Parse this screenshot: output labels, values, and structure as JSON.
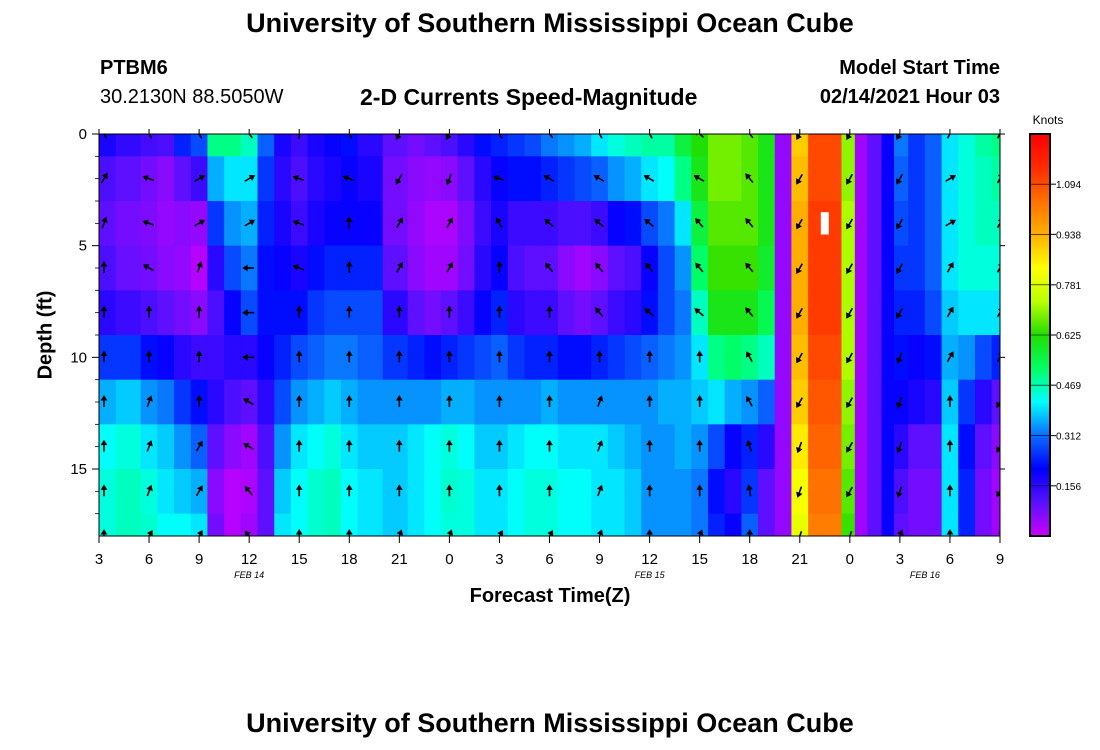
{
  "header": {
    "title": "University of Southern Mississippi Ocean Cube",
    "station_id": "PTBM6",
    "station_coords": "30.2130N 88.5050W",
    "plot_title": "2-D Currents Speed-Magnitude",
    "start_label": "Model Start Time",
    "start_value": "02/14/2021 Hour 03"
  },
  "footer": {
    "title": "University of Southern Mississippi Ocean Cube"
  },
  "chart_data": {
    "type": "heatmap",
    "title": "2-D Currents Speed-Magnitude",
    "xlabel": "Forecast Time(Z)",
    "ylabel": "Depth (ft)",
    "x_hours": [
      0,
      54
    ],
    "ylim": [
      0,
      18
    ],
    "y_inverted": true,
    "x_ticks": [
      {
        "hour": 0,
        "label": "3"
      },
      {
        "hour": 3,
        "label": "6"
      },
      {
        "hour": 6,
        "label": "9"
      },
      {
        "hour": 9,
        "label": "12"
      },
      {
        "hour": 12,
        "label": "15"
      },
      {
        "hour": 15,
        "label": "18"
      },
      {
        "hour": 18,
        "label": "21"
      },
      {
        "hour": 21,
        "label": "0"
      },
      {
        "hour": 24,
        "label": "3"
      },
      {
        "hour": 27,
        "label": "6"
      },
      {
        "hour": 30,
        "label": "9"
      },
      {
        "hour": 33,
        "label": "12"
      },
      {
        "hour": 36,
        "label": "15"
      },
      {
        "hour": 39,
        "label": "18"
      },
      {
        "hour": 42,
        "label": "21"
      },
      {
        "hour": 45,
        "label": "0"
      },
      {
        "hour": 48,
        "label": "3"
      },
      {
        "hour": 51,
        "label": "6"
      },
      {
        "hour": 54,
        "label": "9"
      }
    ],
    "date_labels": [
      {
        "hour": 9,
        "label": "FEB 14"
      },
      {
        "hour": 33,
        "label": "FEB 15"
      },
      {
        "hour": 49.5,
        "label": "FEB 16"
      }
    ],
    "y_ticks": [
      0,
      5,
      10,
      15
    ],
    "colorbar": {
      "units": "Knots",
      "range": [
        0,
        1.25
      ],
      "labels": [
        "0.156",
        "0.312",
        "0.469",
        "0.625",
        "0.781",
        "0.938",
        "1.094"
      ],
      "label_values": [
        0.156,
        0.312,
        0.469,
        0.625,
        0.781,
        0.938,
        1.094
      ],
      "stops": [
        "#cc00ff",
        "#5a10ff",
        "#0000ff",
        "#0a6cff",
        "#00ffff",
        "#00ff66",
        "#22dd00",
        "#bbff00",
        "#ffff00",
        "#ffb000",
        "#ff7000",
        "#ff2a00",
        "#ff0000"
      ]
    },
    "depths_ft": [
      0,
      2,
      4,
      6,
      8,
      10,
      12,
      14,
      16,
      18
    ],
    "columns": [
      {
        "h": 0,
        "v": [
          0.18,
          0.12,
          0.1,
          0.12,
          0.16,
          0.26,
          0.36,
          0.42,
          0.44,
          0.44
        ]
      },
      {
        "h": 2,
        "v": [
          0.15,
          0.1,
          0.08,
          0.09,
          0.14,
          0.26,
          0.38,
          0.44,
          0.46,
          0.46
        ]
      },
      {
        "h": 3,
        "v": [
          0.13,
          0.08,
          0.07,
          0.08,
          0.12,
          0.22,
          0.34,
          0.4,
          0.44,
          0.45
        ]
      },
      {
        "h": 4,
        "v": [
          0.12,
          0.06,
          0.05,
          0.06,
          0.1,
          0.2,
          0.32,
          0.38,
          0.4,
          0.42
        ]
      },
      {
        "h": 5,
        "v": [
          0.24,
          0.1,
          0.06,
          0.05,
          0.08,
          0.16,
          0.26,
          0.34,
          0.38,
          0.42
        ]
      },
      {
        "h": 6,
        "v": [
          0.28,
          0.14,
          0.05,
          0.02,
          0.06,
          0.14,
          0.22,
          0.3,
          0.36,
          0.4
        ]
      },
      {
        "h": 7,
        "v": [
          0.5,
          0.36,
          0.26,
          0.16,
          0.12,
          0.14,
          0.16,
          0.1,
          0.06,
          0.08
        ]
      },
      {
        "h": 8,
        "v": [
          0.5,
          0.4,
          0.34,
          0.28,
          0.2,
          0.16,
          0.12,
          0.06,
          0.02,
          0.02
        ]
      },
      {
        "h": 9,
        "v": [
          0.46,
          0.4,
          0.36,
          0.32,
          0.28,
          0.16,
          0.1,
          0.04,
          0.03,
          0.04
        ]
      },
      {
        "h": 10,
        "v": [
          0.3,
          0.26,
          0.24,
          0.22,
          0.22,
          0.2,
          0.16,
          0.12,
          0.1,
          0.1
        ]
      },
      {
        "h": 11,
        "v": [
          0.18,
          0.16,
          0.18,
          0.2,
          0.22,
          0.24,
          0.28,
          0.34,
          0.38,
          0.4
        ]
      },
      {
        "h": 12,
        "v": [
          0.14,
          0.12,
          0.14,
          0.18,
          0.22,
          0.28,
          0.34,
          0.4,
          0.42,
          0.42
        ]
      },
      {
        "h": 13,
        "v": [
          0.18,
          0.16,
          0.18,
          0.22,
          0.26,
          0.3,
          0.36,
          0.42,
          0.45,
          0.45
        ]
      },
      {
        "h": 14,
        "v": [
          0.2,
          0.18,
          0.2,
          0.24,
          0.28,
          0.32,
          0.38,
          0.44,
          0.46,
          0.46
        ]
      },
      {
        "h": 15,
        "v": [
          0.22,
          0.2,
          0.2,
          0.24,
          0.28,
          0.32,
          0.36,
          0.4,
          0.42,
          0.42
        ]
      },
      {
        "h": 16,
        "v": [
          0.16,
          0.18,
          0.2,
          0.24,
          0.28,
          0.3,
          0.34,
          0.38,
          0.4,
          0.4
        ]
      },
      {
        "h": 18,
        "v": [
          0.1,
          0.08,
          0.08,
          0.1,
          0.16,
          0.26,
          0.34,
          0.38,
          0.38,
          0.38
        ]
      },
      {
        "h": 19,
        "v": [
          0.08,
          0.06,
          0.05,
          0.06,
          0.1,
          0.24,
          0.34,
          0.4,
          0.4,
          0.4
        ]
      },
      {
        "h": 20,
        "v": [
          0.1,
          0.05,
          0.03,
          0.04,
          0.08,
          0.22,
          0.34,
          0.42,
          0.42,
          0.42
        ]
      },
      {
        "h": 21,
        "v": [
          0.12,
          0.06,
          0.03,
          0.04,
          0.1,
          0.24,
          0.36,
          0.44,
          0.45,
          0.44
        ]
      },
      {
        "h": 22,
        "v": [
          0.16,
          0.1,
          0.07,
          0.08,
          0.14,
          0.26,
          0.36,
          0.42,
          0.44,
          0.44
        ]
      },
      {
        "h": 23,
        "v": [
          0.22,
          0.16,
          0.14,
          0.16,
          0.2,
          0.28,
          0.34,
          0.38,
          0.4,
          0.4
        ]
      },
      {
        "h": 24,
        "v": [
          0.24,
          0.2,
          0.18,
          0.2,
          0.24,
          0.3,
          0.34,
          0.38,
          0.4,
          0.4
        ]
      },
      {
        "h": 25,
        "v": [
          0.26,
          0.22,
          0.14,
          0.12,
          0.16,
          0.26,
          0.34,
          0.4,
          0.42,
          0.42
        ]
      },
      {
        "h": 26,
        "v": [
          0.28,
          0.22,
          0.14,
          0.1,
          0.14,
          0.24,
          0.34,
          0.42,
          0.44,
          0.44
        ]
      },
      {
        "h": 27,
        "v": [
          0.32,
          0.24,
          0.14,
          0.1,
          0.14,
          0.24,
          0.36,
          0.42,
          0.44,
          0.44
        ]
      },
      {
        "h": 28,
        "v": [
          0.34,
          0.26,
          0.12,
          0.06,
          0.1,
          0.22,
          0.34,
          0.4,
          0.42,
          0.42
        ]
      },
      {
        "h": 29,
        "v": [
          0.36,
          0.28,
          0.12,
          0.04,
          0.08,
          0.22,
          0.34,
          0.4,
          0.42,
          0.42
        ]
      },
      {
        "h": 30,
        "v": [
          0.4,
          0.3,
          0.14,
          0.06,
          0.1,
          0.24,
          0.34,
          0.4,
          0.4,
          0.4
        ]
      },
      {
        "h": 31,
        "v": [
          0.44,
          0.34,
          0.2,
          0.1,
          0.14,
          0.26,
          0.34,
          0.38,
          0.4,
          0.4
        ]
      },
      {
        "h": 32,
        "v": [
          0.46,
          0.36,
          0.22,
          0.12,
          0.16,
          0.28,
          0.34,
          0.36,
          0.38,
          0.38
        ]
      },
      {
        "h": 33,
        "v": [
          0.48,
          0.4,
          0.28,
          0.2,
          0.22,
          0.3,
          0.34,
          0.34,
          0.34,
          0.34
        ]
      },
      {
        "h": 34,
        "v": [
          0.48,
          0.42,
          0.32,
          0.28,
          0.28,
          0.32,
          0.36,
          0.34,
          0.34,
          0.34
        ]
      },
      {
        "h": 35,
        "v": [
          0.56,
          0.5,
          0.4,
          0.34,
          0.32,
          0.34,
          0.36,
          0.36,
          0.34,
          0.34
        ]
      },
      {
        "h": 36,
        "v": [
          0.62,
          0.6,
          0.56,
          0.52,
          0.46,
          0.4,
          0.38,
          0.34,
          0.32,
          0.32
        ]
      },
      {
        "h": 37,
        "v": [
          0.68,
          0.68,
          0.66,
          0.64,
          0.6,
          0.5,
          0.4,
          0.28,
          0.22,
          0.24
        ]
      },
      {
        "h": 38,
        "v": [
          0.68,
          0.68,
          0.66,
          0.64,
          0.6,
          0.52,
          0.36,
          0.2,
          0.16,
          0.2
        ]
      },
      {
        "h": 39,
        "v": [
          0.66,
          0.66,
          0.66,
          0.64,
          0.6,
          0.5,
          0.34,
          0.24,
          0.26,
          0.3
        ]
      },
      {
        "h": 40,
        "v": [
          0.6,
          0.6,
          0.6,
          0.58,
          0.54,
          0.46,
          0.3,
          0.16,
          0.1,
          0.1
        ]
      },
      {
        "h": 41,
        "v": [
          0.05,
          0.05,
          0.05,
          0.05,
          0.05,
          0.05,
          0.05,
          0.05,
          0.05,
          0.05
        ]
      },
      {
        "h": 42,
        "v": [
          0.9,
          0.92,
          0.94,
          0.94,
          0.94,
          0.92,
          0.9,
          0.86,
          0.82,
          0.8
        ]
      },
      {
        "h": 43,
        "v": [
          1.1,
          1.1,
          1.12,
          1.12,
          1.12,
          1.1,
          1.08,
          1.06,
          1.04,
          1.02
        ]
      },
      {
        "h": 44,
        "v": [
          1.1,
          1.1,
          1.12,
          1.12,
          1.12,
          1.1,
          1.08,
          1.06,
          1.04,
          1.02
        ]
      },
      {
        "h": 45,
        "v": [
          0.7,
          0.7,
          0.72,
          0.72,
          0.72,
          0.72,
          0.7,
          0.68,
          0.66,
          0.64
        ]
      },
      {
        "h": 45.6,
        "v": [
          0.04,
          0.04,
          0.04,
          0.04,
          0.04,
          0.04,
          0.04,
          0.04,
          0.04,
          0.04
        ]
      },
      {
        "h": 46.5,
        "v": [
          0.1,
          0.1,
          0.1,
          0.1,
          0.1,
          0.1,
          0.1,
          0.1,
          0.1,
          0.1
        ]
      },
      {
        "h": 47.3,
        "v": [
          0.2,
          0.2,
          0.2,
          0.2,
          0.2,
          0.2,
          0.2,
          0.2,
          0.2,
          0.2
        ]
      },
      {
        "h": 48,
        "v": [
          0.32,
          0.3,
          0.28,
          0.26,
          0.24,
          0.22,
          0.2,
          0.16,
          0.12,
          0.1
        ]
      },
      {
        "h": 49,
        "v": [
          0.26,
          0.26,
          0.26,
          0.26,
          0.24,
          0.2,
          0.18,
          0.1,
          0.08,
          0.08
        ]
      },
      {
        "h": 50,
        "v": [
          0.3,
          0.3,
          0.3,
          0.3,
          0.28,
          0.22,
          0.16,
          0.1,
          0.08,
          0.08
        ]
      },
      {
        "h": 51,
        "v": [
          0.4,
          0.4,
          0.4,
          0.4,
          0.38,
          0.36,
          0.38,
          0.4,
          0.4,
          0.4
        ]
      },
      {
        "h": 52,
        "v": [
          0.44,
          0.44,
          0.44,
          0.44,
          0.4,
          0.34,
          0.26,
          0.22,
          0.24,
          0.24
        ]
      },
      {
        "h": 53,
        "v": [
          0.48,
          0.46,
          0.46,
          0.44,
          0.4,
          0.28,
          0.16,
          0.1,
          0.08,
          0.08
        ]
      },
      {
        "h": 54,
        "v": [
          0.5,
          0.48,
          0.46,
          0.44,
          0.4,
          0.24,
          0.1,
          0.06,
          0.04,
          0.04
        ]
      }
    ],
    "arrow_depths_ft": [
      0,
      2,
      4,
      6,
      8,
      10,
      12,
      14,
      16,
      18
    ],
    "arrow_columns": [
      {
        "h": 0.3,
        "dirs": [
          330,
          30,
          20,
          0,
          0,
          0,
          0,
          0,
          0,
          0
        ]
      },
      {
        "h": 3,
        "dirs": [
          330,
          290,
          290,
          300,
          0,
          0,
          20,
          20,
          20,
          30
        ]
      },
      {
        "h": 6,
        "dirs": [
          330,
          60,
          60,
          20,
          0,
          0,
          0,
          30,
          30,
          30
        ]
      },
      {
        "h": 9,
        "dirs": [
          320,
          60,
          60,
          270,
          270,
          270,
          300,
          300,
          320,
          320
        ]
      },
      {
        "h": 12,
        "dirs": [
          0,
          290,
          290,
          290,
          0,
          0,
          0,
          0,
          0,
          0
        ]
      },
      {
        "h": 15,
        "dirs": [
          330,
          290,
          0,
          0,
          0,
          0,
          0,
          0,
          0,
          0
        ]
      },
      {
        "h": 18,
        "dirs": [
          210,
          210,
          30,
          30,
          0,
          0,
          0,
          0,
          0,
          20
        ]
      },
      {
        "h": 21,
        "dirs": [
          210,
          200,
          30,
          30,
          0,
          0,
          0,
          0,
          0,
          20
        ]
      },
      {
        "h": 24,
        "dirs": [
          330,
          290,
          330,
          0,
          0,
          0,
          0,
          0,
          0,
          30
        ]
      },
      {
        "h": 27,
        "dirs": [
          320,
          300,
          310,
          320,
          0,
          0,
          0,
          0,
          0,
          30
        ]
      },
      {
        "h": 30,
        "dirs": [
          330,
          300,
          310,
          320,
          320,
          0,
          20,
          20,
          20,
          20
        ]
      },
      {
        "h": 33,
        "dirs": [
          330,
          300,
          310,
          320,
          310,
          0,
          0,
          0,
          0,
          0
        ]
      },
      {
        "h": 36,
        "dirs": [
          310,
          300,
          320,
          320,
          310,
          0,
          0,
          0,
          0,
          20
        ]
      },
      {
        "h": 39,
        "dirs": [
          320,
          320,
          320,
          320,
          320,
          330,
          330,
          340,
          350,
          0
        ]
      },
      {
        "h": 42,
        "dirs": [
          210,
          210,
          210,
          210,
          210,
          210,
          210,
          200,
          200,
          200
        ]
      },
      {
        "h": 45,
        "dirs": [
          210,
          210,
          210,
          210,
          210,
          210,
          210,
          210,
          210,
          200
        ]
      },
      {
        "h": 48,
        "dirs": [
          210,
          210,
          210,
          210,
          210,
          200,
          200,
          200,
          200,
          20
        ]
      },
      {
        "h": 51,
        "dirs": [
          30,
          60,
          60,
          30,
          30,
          30,
          0,
          0,
          0,
          0
        ]
      },
      {
        "h": 54,
        "dirs": [
          30,
          30,
          30,
          30,
          30,
          30,
          210,
          210,
          210,
          30
        ]
      }
    ],
    "missing_cells": [
      {
        "hour": 43.5,
        "depth_from": 3.5,
        "depth_to": 4.5
      }
    ]
  }
}
